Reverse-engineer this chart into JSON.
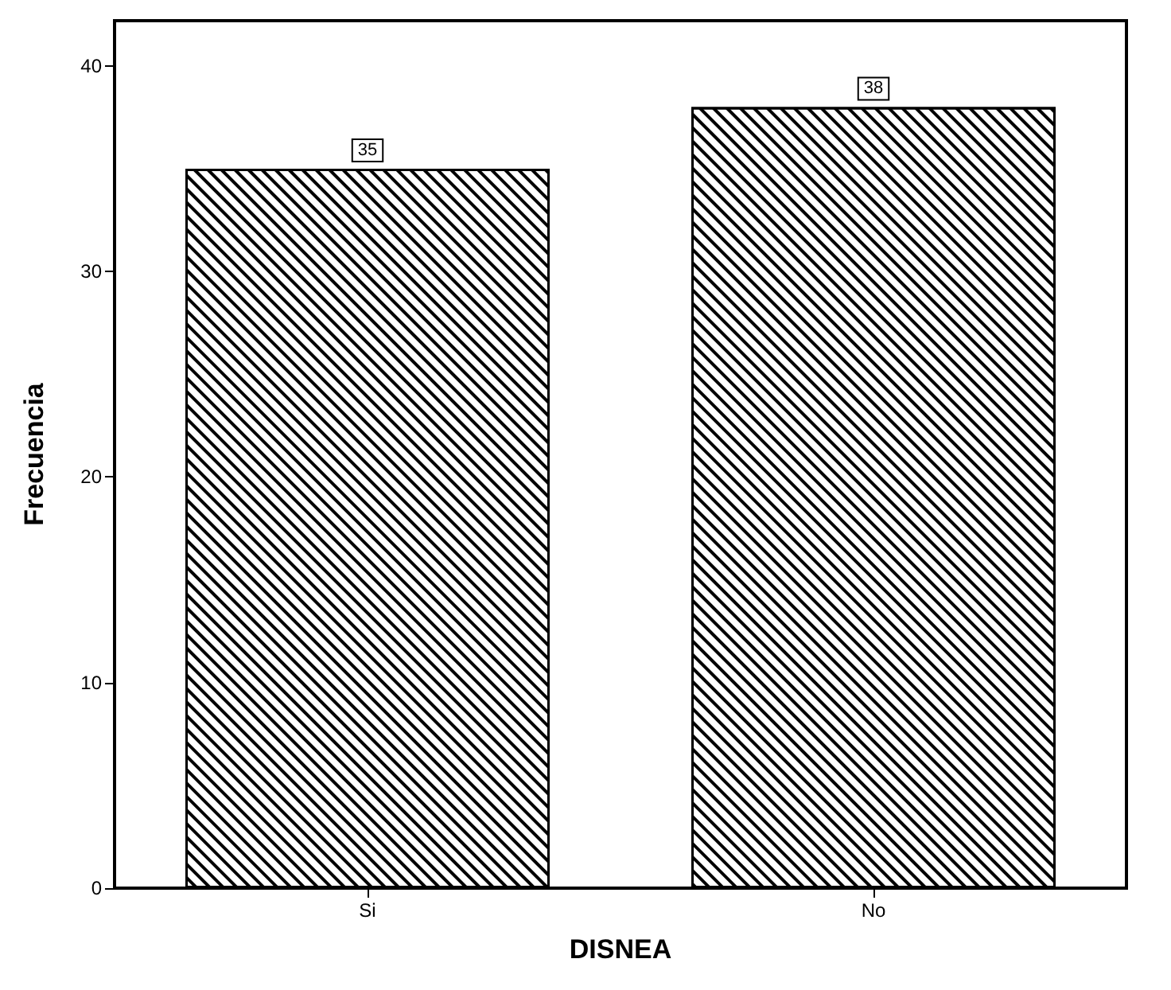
{
  "chart_data": {
    "type": "bar",
    "xlabel": "DISNEA",
    "ylabel": "Frecuencia",
    "categories": [
      "Si",
      "No"
    ],
    "values": [
      35,
      38
    ],
    "color": "#ffffff",
    "ylim": [
      0,
      42.2
    ],
    "yticks": [
      0,
      10,
      20,
      30,
      40
    ],
    "grid": false,
    "data_labels": true
  }
}
